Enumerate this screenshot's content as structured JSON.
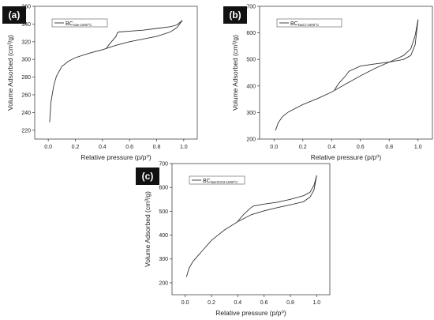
{
  "chart_data": [
    {
      "panel_label": "(a)",
      "type": "line",
      "xlabel": "Relative pressure (p/p⁰)",
      "ylabel": "Volume Adsorbed (cm³/g)",
      "xlim": [
        -0.1,
        1.1
      ],
      "ylim": [
        210,
        360
      ],
      "xticks": [
        0.0,
        0.2,
        0.4,
        0.6,
        0.8,
        1.0
      ],
      "xtick_labels": [
        "0.0",
        "0.2",
        "0.4",
        "0.6",
        "0.8",
        "1.0"
      ],
      "yticks": [
        220,
        240,
        260,
        280,
        300,
        320,
        340,
        360
      ],
      "ytick_labels": [
        "220",
        "240",
        "260",
        "280",
        "300",
        "320",
        "340",
        "360"
      ],
      "legend": {
        "base": "BC",
        "sub": "raw-1000°C",
        "placement": "top-left"
      },
      "series": [
        {
          "name": "adsorption",
          "x": [
            0.01,
            0.02,
            0.04,
            0.06,
            0.1,
            0.15,
            0.2,
            0.3,
            0.4,
            0.5,
            0.6,
            0.7,
            0.8,
            0.9,
            0.95,
            0.99
          ],
          "y": [
            229,
            252,
            270,
            281,
            292,
            298,
            302,
            307,
            311,
            316,
            320,
            323,
            326,
            331,
            336,
            344
          ]
        },
        {
          "name": "desorption",
          "x": [
            0.99,
            0.95,
            0.9,
            0.8,
            0.7,
            0.6,
            0.52,
            0.51,
            0.5,
            0.45,
            0.43
          ],
          "y": [
            344,
            339,
            337,
            335,
            333,
            332,
            331,
            330,
            326,
            317,
            313
          ]
        }
      ]
    },
    {
      "panel_label": "(b)",
      "type": "line",
      "xlabel": "Relative pressure (p/p⁰)",
      "ylabel": "Volume Adsorbed (cm³/g)",
      "xlim": [
        -0.1,
        1.1
      ],
      "ylim": [
        200,
        700
      ],
      "xticks": [
        0.0,
        0.2,
        0.4,
        0.6,
        0.8,
        1.0
      ],
      "xtick_labels": [
        "0.0",
        "0.2",
        "0.4",
        "0.6",
        "0.8",
        "1.0"
      ],
      "yticks": [
        200,
        300,
        400,
        500,
        600,
        700
      ],
      "ytick_labels": [
        "200",
        "300",
        "400",
        "500",
        "600",
        "700"
      ],
      "legend": {
        "base": "BC",
        "sub": "NaCl-1000°C",
        "placement": "top-left"
      },
      "series": [
        {
          "name": "adsorption",
          "x": [
            0.01,
            0.03,
            0.06,
            0.1,
            0.2,
            0.3,
            0.4,
            0.5,
            0.6,
            0.7,
            0.8,
            0.9,
            0.95,
            0.98,
            1.0
          ],
          "y": [
            232,
            262,
            285,
            302,
            330,
            352,
            377,
            408,
            438,
            466,
            490,
            500,
            515,
            555,
            650
          ]
        },
        {
          "name": "desorption",
          "x": [
            1.0,
            0.98,
            0.95,
            0.9,
            0.8,
            0.7,
            0.6,
            0.52,
            0.5,
            0.45,
            0.42
          ],
          "y": [
            650,
            590,
            540,
            515,
            490,
            483,
            475,
            455,
            440,
            410,
            385
          ]
        }
      ]
    },
    {
      "panel_label": "(c)",
      "type": "line",
      "xlabel": "Relative pressure (p/p⁰)",
      "ylabel": "Volume Adsorbed (cm³/g)",
      "xlim": [
        -0.1,
        1.1
      ],
      "ylim": [
        150,
        700
      ],
      "xticks": [
        0.0,
        0.2,
        0.4,
        0.6,
        0.8,
        1.0
      ],
      "xtick_labels": [
        "0.0",
        "0.2",
        "0.4",
        "0.6",
        "0.8",
        "1.0"
      ],
      "yticks": [
        200,
        300,
        400,
        500,
        600,
        700
      ],
      "ytick_labels": [
        "200",
        "300",
        "400",
        "500",
        "600",
        "700"
      ],
      "legend": {
        "base": "BC",
        "sub": "NaHCO3-1000°C",
        "placement": "top-left"
      },
      "series": [
        {
          "name": "adsorption",
          "x": [
            0.01,
            0.03,
            0.06,
            0.1,
            0.2,
            0.3,
            0.4,
            0.5,
            0.6,
            0.7,
            0.8,
            0.9,
            0.95,
            0.98,
            1.0
          ],
          "y": [
            225,
            262,
            290,
            315,
            378,
            422,
            456,
            485,
            502,
            515,
            527,
            540,
            560,
            590,
            650
          ]
        },
        {
          "name": "desorption",
          "x": [
            1.0,
            0.98,
            0.95,
            0.9,
            0.8,
            0.7,
            0.6,
            0.52,
            0.5,
            0.45,
            0.4
          ],
          "y": [
            650,
            610,
            580,
            565,
            550,
            538,
            530,
            522,
            515,
            490,
            458
          ]
        }
      ]
    }
  ]
}
